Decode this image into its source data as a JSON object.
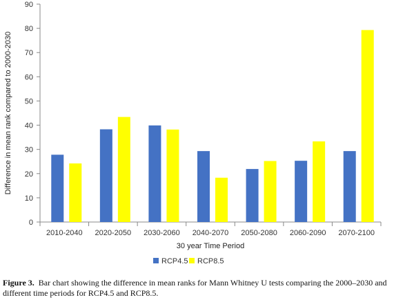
{
  "chart_data": {
    "type": "bar",
    "categories": [
      "2010-2040",
      "2020-2050",
      "2030-2060",
      "2040-2070",
      "2050-2080",
      "2060-2090",
      "2070-2100"
    ],
    "series": [
      {
        "name": "RCP4.5",
        "color": "#4472C4",
        "values": [
          27.8,
          38.3,
          39.9,
          29.3,
          21.9,
          25.3,
          29.3
        ]
      },
      {
        "name": "RCP8.5",
        "color": "#FFFF00",
        "values": [
          24.2,
          43.4,
          38.2,
          18.3,
          25.2,
          33.3,
          79.3
        ]
      }
    ],
    "title": "",
    "xlabel": "30 year Time Period",
    "ylabel": "Difference in mean rank compared to 2000-2030",
    "ylim": [
      0,
      90
    ],
    "yticks": [
      0,
      10,
      20,
      30,
      40,
      50,
      60,
      70,
      80,
      90
    ],
    "grid": false,
    "legend_position": "bottom"
  },
  "caption": {
    "label": "Figure 3.",
    "text": "Bar chart showing the difference in mean ranks for Mann Whitney U tests comparing the 2000–2030 and different time periods for RCP4.5 and RCP8.5."
  }
}
